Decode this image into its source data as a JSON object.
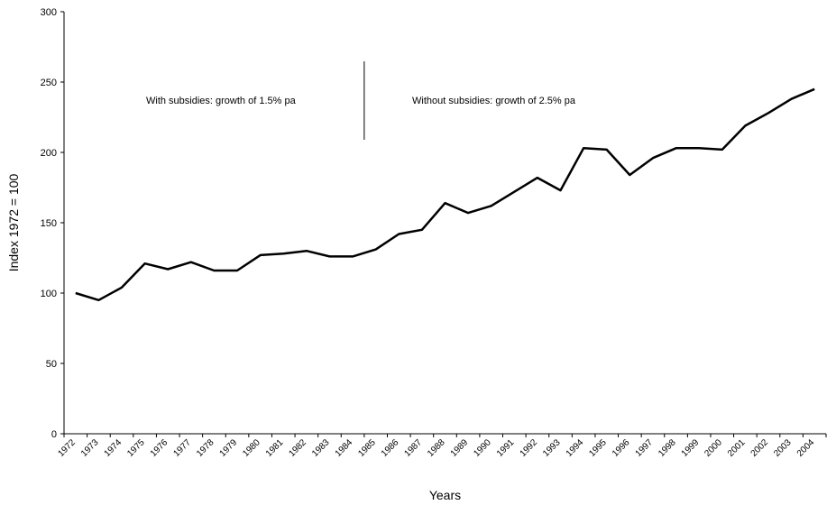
{
  "chart_data": {
    "type": "line",
    "title": "",
    "xlabel": "Years",
    "ylabel": "Index 1972 = 100",
    "ylim": [
      0,
      300
    ],
    "yticks": [
      0,
      50,
      100,
      150,
      200,
      250,
      300
    ],
    "grid": false,
    "legend": "none",
    "line_color": "#000000",
    "categories": [
      "1972",
      "1973",
      "1974",
      "1975",
      "1976",
      "1977",
      "1978",
      "1979",
      "1980",
      "1981",
      "1982",
      "1983",
      "1984",
      "1985",
      "1986",
      "1987",
      "1988",
      "1989",
      "1990",
      "1991",
      "1992",
      "1993",
      "1994",
      "1995",
      "1996",
      "1997",
      "1998",
      "1999",
      "2000",
      "2001",
      "2002",
      "2003",
      "2004"
    ],
    "series": [
      {
        "values": [
          100,
          95,
          104,
          121,
          117,
          122,
          116,
          116,
          127,
          128,
          130,
          126,
          126,
          131,
          142,
          145,
          164,
          157,
          162,
          172,
          182,
          173,
          203,
          202,
          184,
          196,
          203,
          203,
          202,
          219,
          228,
          238,
          245
        ]
      }
    ],
    "annotations": [
      {
        "text": "With subsidies: growth of 1.5% pa"
      },
      {
        "text": "Without subsidies: growth of 2.5% pa"
      }
    ],
    "divider_between": [
      "1984",
      "1985"
    ]
  }
}
